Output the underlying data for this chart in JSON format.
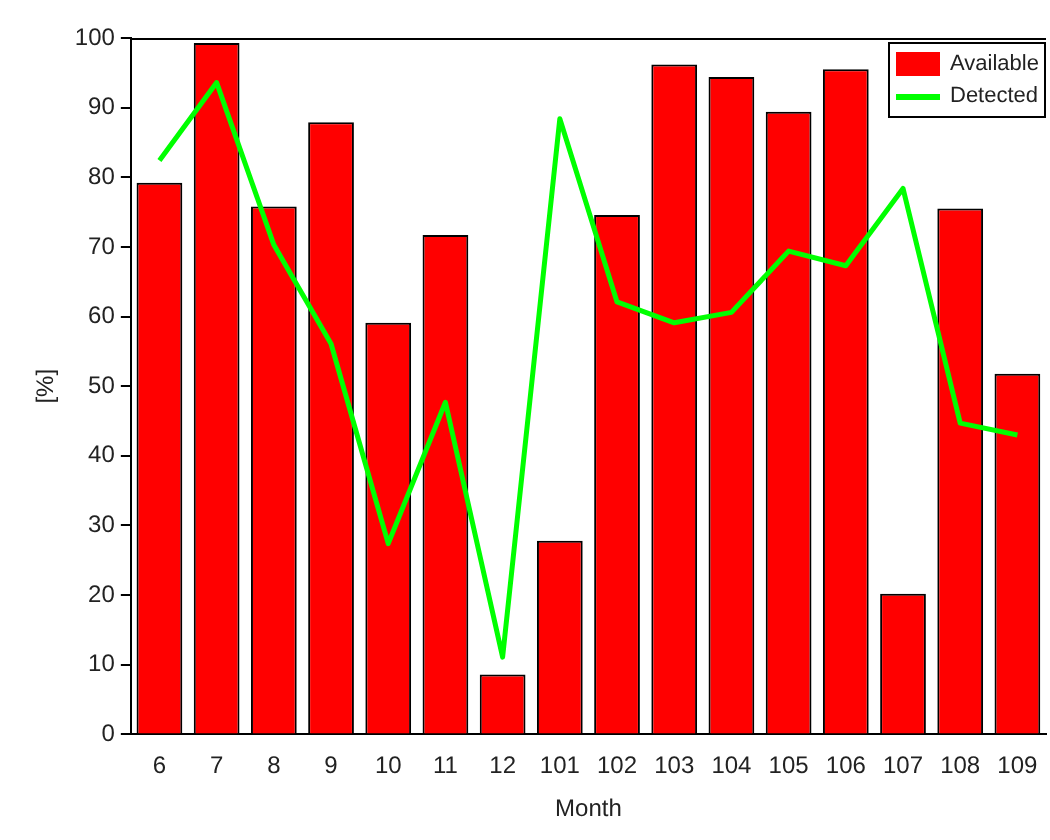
{
  "chart_data": {
    "type": "bar",
    "xlabel": "Month",
    "ylabel": "[%]",
    "categories": [
      "6",
      "7",
      "8",
      "9",
      "10",
      "11",
      "12",
      "101",
      "102",
      "103",
      "104",
      "105",
      "106",
      "107",
      "108",
      "109"
    ],
    "series": [
      {
        "name": "Available",
        "type": "bar",
        "color": "#ff0000",
        "values": [
          79.2,
          99.3,
          75.8,
          87.9,
          59.1,
          71.7,
          8.6,
          27.8,
          74.6,
          96.2,
          94.4,
          89.4,
          95.5,
          20.2,
          75.5,
          51.8
        ]
      },
      {
        "name": "Detected",
        "type": "line",
        "color": "#00ff00",
        "values": [
          82.4,
          93.6,
          70.3,
          56.1,
          27.4,
          47.7,
          11.1,
          88.4,
          62.1,
          59.1,
          60.6,
          69.4,
          67.3,
          78.4,
          44.7,
          43.0
        ]
      }
    ],
    "ylim": [
      0,
      100
    ],
    "yticks": [
      0,
      10,
      20,
      30,
      40,
      50,
      60,
      70,
      80,
      90,
      100
    ],
    "grid": false,
    "legend": "top right",
    "marker": "none",
    "line_style": "solid"
  }
}
